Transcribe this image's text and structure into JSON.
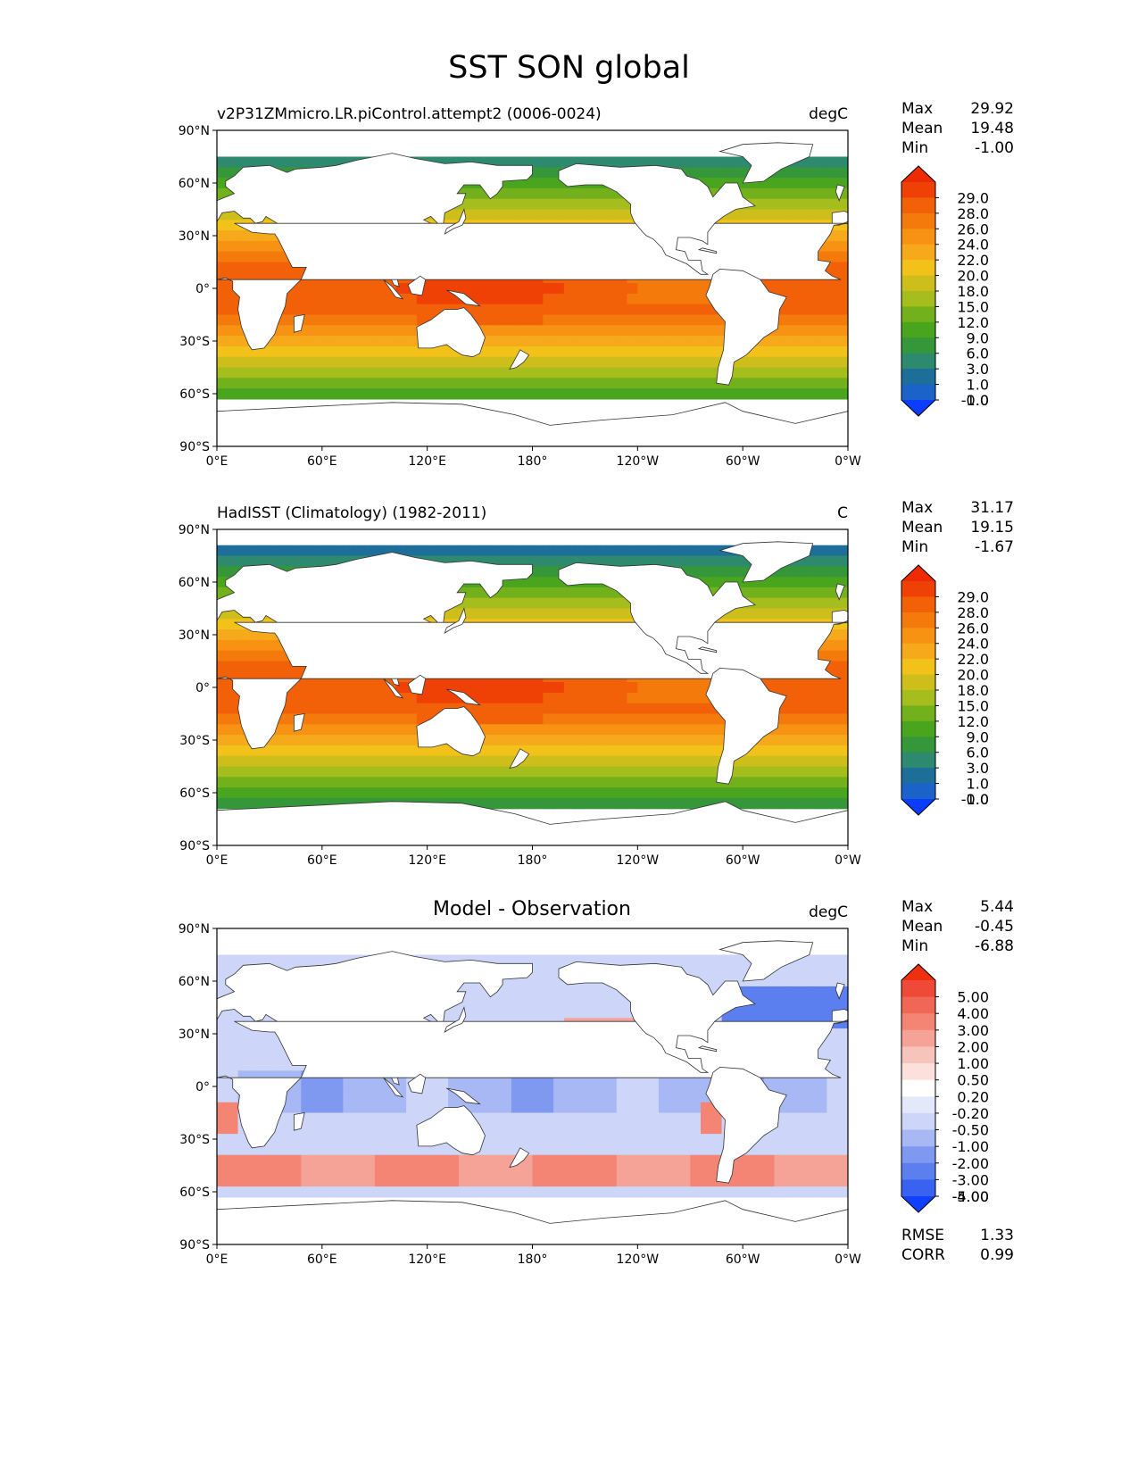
{
  "figure_title": "SST SON global",
  "axis_ticks": {
    "lat": [
      "90°N",
      "60°N",
      "30°N",
      "0°",
      "30°S",
      "60°S",
      "90°S"
    ],
    "lon": [
      "0°E",
      "60°E",
      "120°E",
      "180°",
      "120°W",
      "60°W",
      "0°W"
    ]
  },
  "panels": [
    {
      "left_title": "v2P31ZMmicro.LR.piControl.attempt2 (0006-0024)",
      "center_title": "",
      "units": "degC",
      "stats": [
        {
          "label": "Max",
          "value": "29.92"
        },
        {
          "label": "Mean",
          "value": "19.48"
        },
        {
          "label": "Min",
          "value": "-1.00"
        }
      ],
      "colorbar_labels": [
        "29.0",
        "28.0",
        "26.0",
        "24.0",
        "22.0",
        "20.0",
        "18.0",
        "15.0",
        "12.0",
        "9.0",
        "6.0",
        "3.0",
        "1.0",
        "0.0",
        "-1.0"
      ]
    },
    {
      "left_title": "HadISST (Climatology) (1982-2011)",
      "center_title": "",
      "units": "C",
      "stats": [
        {
          "label": "Max",
          "value": "31.17"
        },
        {
          "label": "Mean",
          "value": "19.15"
        },
        {
          "label": "Min",
          "value": "-1.67"
        }
      ],
      "colorbar_labels": [
        "29.0",
        "28.0",
        "26.0",
        "24.0",
        "22.0",
        "20.0",
        "18.0",
        "15.0",
        "12.0",
        "9.0",
        "6.0",
        "3.0",
        "1.0",
        "0.0",
        "-1.0"
      ]
    },
    {
      "left_title": "",
      "center_title": "Model - Observation",
      "units": "degC",
      "stats": [
        {
          "label": "Max",
          "value": "5.44"
        },
        {
          "label": "Mean",
          "value": "-0.45"
        },
        {
          "label": "Min",
          "value": "-6.88"
        }
      ],
      "colorbar_labels": [
        "5.00",
        "4.00",
        "3.00",
        "2.00",
        "1.00",
        "0.50",
        "0.20",
        "-0.20",
        "-0.50",
        "-1.00",
        "-2.00",
        "-3.00",
        "-4.00",
        "-5.00"
      ],
      "extra_stats": [
        {
          "label": "RMSE",
          "value": "1.33"
        },
        {
          "label": "CORR",
          "value": "0.99"
        }
      ]
    }
  ],
  "colors": {
    "sst_ramp": [
      "#0b3cff",
      "#1c63c9",
      "#1e6e9a",
      "#2e8a6e",
      "#35963a",
      "#4aa51e",
      "#72b01c",
      "#a6bd1e",
      "#cdbe1c",
      "#f2c21a",
      "#f6a91b",
      "#f79213",
      "#f57a0c",
      "#f26008",
      "#ef4106",
      "#ee2a00"
    ],
    "diff_ramp": [
      "#1040ff",
      "#3a62f0",
      "#5c7ff0",
      "#8099f0",
      "#a7b8f4",
      "#cdd6f8",
      "#e3e8fb",
      "#ffffff",
      "#fbe0dc",
      "#f7c4bc",
      "#f5a397",
      "#f48574",
      "#f06755",
      "#ee4a37",
      "#ee2f10"
    ],
    "land": "#ffffff",
    "coast": "#333333"
  }
}
